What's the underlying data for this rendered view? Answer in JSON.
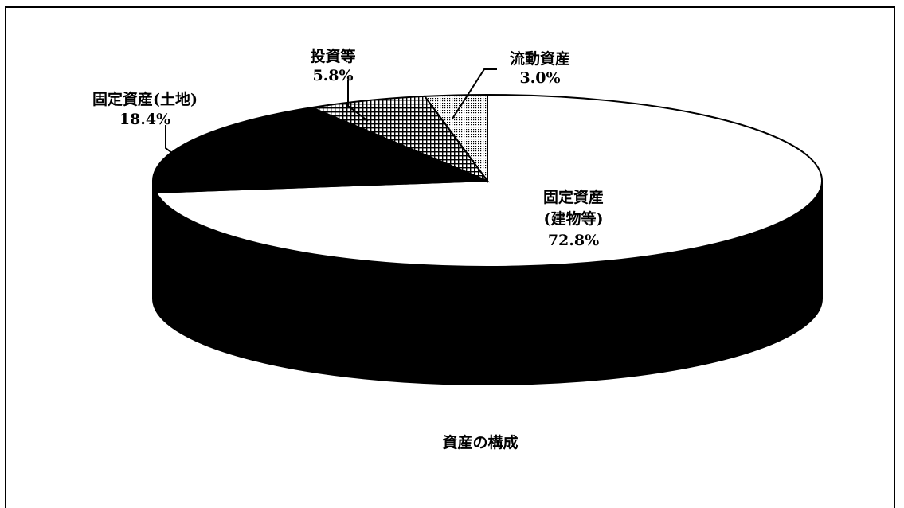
{
  "chart_data": {
    "type": "pie",
    "style": "3d-exploded-none",
    "title": "資産の構成",
    "slices": [
      {
        "name": "固定資産(建物等)",
        "lines": [
          "固定資産",
          "(建物等)",
          "72.8%"
        ],
        "value": 72.8,
        "fill": "white"
      },
      {
        "name": "固定資産(土地)",
        "lines": [
          "固定資産(土地)",
          "18.4%"
        ],
        "value": 18.4,
        "fill": "black"
      },
      {
        "name": "投資等",
        "lines": [
          "投資等",
          "5.8%"
        ],
        "value": 5.8,
        "fill": "crosshatch"
      },
      {
        "name": "流動資産",
        "lines": [
          "流動資産",
          "3.0%"
        ],
        "value": 3.0,
        "fill": "dots"
      }
    ],
    "legend": "none"
  }
}
